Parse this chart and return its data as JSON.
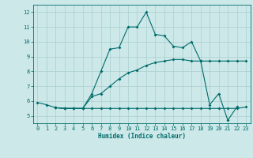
{
  "xlabel": "Humidex (Indice chaleur)",
  "background_color": "#cce8e8",
  "grid_color": "#aacfcf",
  "line_color": "#006b6b",
  "xlim": [
    -0.5,
    23.5
  ],
  "ylim": [
    4.5,
    12.5
  ],
  "xticks": [
    0,
    1,
    2,
    3,
    4,
    5,
    6,
    7,
    8,
    9,
    10,
    11,
    12,
    13,
    14,
    15,
    16,
    17,
    18,
    19,
    20,
    21,
    22,
    23
  ],
  "yticks": [
    5,
    6,
    7,
    8,
    9,
    10,
    11,
    12
  ],
  "line1_x": [
    0,
    1,
    2,
    3,
    4,
    5,
    6,
    7,
    8,
    9,
    10,
    11,
    12,
    13,
    14,
    15,
    16,
    17,
    18,
    19,
    20,
    21,
    22
  ],
  "line1_y": [
    5.9,
    5.75,
    5.55,
    5.5,
    5.5,
    5.5,
    6.5,
    8.0,
    9.5,
    9.6,
    11.0,
    11.0,
    12.0,
    10.5,
    10.4,
    9.7,
    9.6,
    10.0,
    8.7,
    5.75,
    6.5,
    4.7,
    5.6
  ],
  "line2_x": [
    2,
    3,
    4,
    5,
    6,
    7,
    8,
    9,
    10,
    11,
    12,
    13,
    14,
    15,
    16,
    17,
    18,
    19,
    20,
    21,
    22,
    23
  ],
  "line2_y": [
    5.55,
    5.5,
    5.5,
    5.5,
    5.5,
    5.5,
    5.5,
    5.5,
    5.5,
    5.5,
    5.5,
    5.5,
    5.5,
    5.5,
    5.5,
    5.5,
    5.5,
    5.5,
    5.5,
    5.5,
    5.5,
    5.6
  ],
  "line3_x": [
    2,
    3,
    4,
    5,
    6,
    7,
    8,
    9,
    10,
    11,
    12,
    13,
    14,
    15,
    16,
    17,
    18,
    19,
    20,
    21,
    22,
    23
  ],
  "line3_y": [
    5.55,
    5.5,
    5.5,
    5.5,
    6.3,
    6.5,
    7.0,
    7.5,
    7.9,
    8.1,
    8.4,
    8.6,
    8.7,
    8.8,
    8.8,
    8.7,
    8.7,
    8.7,
    8.7,
    8.7,
    8.7,
    8.7
  ]
}
